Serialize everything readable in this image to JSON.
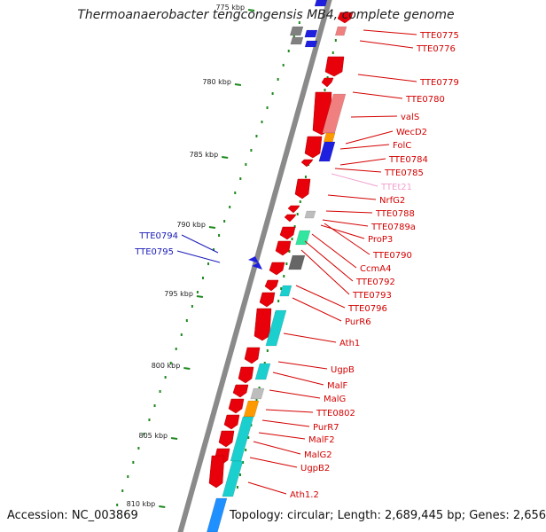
{
  "title": "Thermoanaerobacter tengcongensis MB4, complete genome",
  "footer": {
    "accession": "Accession: NC_003869",
    "topology": "Topology: circular; Length: 2,689,445 bp; Genes: 2,656"
  },
  "colors": {
    "backbone": "#8a8a8a",
    "tick": "#1e8a1e",
    "gene_red": "#e8000a",
    "gene_lightred": "#f08080",
    "gene_blue": "#1f1fe0",
    "gene_cyan": "#1ccfcf",
    "gene_gray": "#808080",
    "gene_orange": "#ff9900",
    "gene_green": "#33e6a0",
    "label_red": "#d40000",
    "label_blue": "#1a1ab8",
    "label_pink": "#f0a0d0"
  },
  "kbp_labels": [
    "775 kbp",
    "780 kbp",
    "785 kbp",
    "790 kbp",
    "795 kbp",
    "800 kbp",
    "805 kbp",
    "810 kbp"
  ],
  "right_genes": [
    "TTE0775",
    "TTE0776",
    "TTE0779",
    "TTE0780",
    "valS",
    "WecD2",
    "FolC",
    "TTE0784",
    "TTE0785",
    "TTEt21",
    "NrfG2",
    "TTE0788",
    "TTE0789a",
    "ProP3",
    "TTE0790",
    "CcmA4",
    "TTE0792",
    "TTE0793",
    "TTE0796",
    "PurR6",
    "Ath1",
    "UgpB",
    "MalF",
    "MalG",
    "TTE0802",
    "PurR7",
    "MalF2",
    "MalG2",
    "UgpB2",
    "Ath1.2"
  ],
  "left_genes": [
    "TTE0794",
    "TTE0795"
  ]
}
